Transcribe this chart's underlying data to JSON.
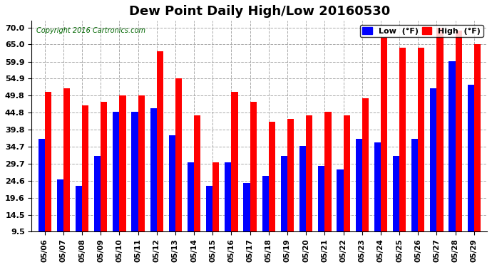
{
  "title": "Dew Point Daily High/Low 20160530",
  "copyright": "Copyright 2016 Cartronics.com",
  "dates": [
    "05/06",
    "05/07",
    "05/08",
    "05/09",
    "05/10",
    "05/11",
    "05/12",
    "05/13",
    "05/14",
    "05/15",
    "05/16",
    "05/17",
    "05/18",
    "05/19",
    "05/20",
    "05/21",
    "05/22",
    "05/23",
    "05/24",
    "05/25",
    "05/26",
    "05/27",
    "05/28",
    "05/29"
  ],
  "low": [
    37,
    25,
    23,
    32,
    45,
    45,
    46,
    38,
    30,
    23,
    30,
    24,
    26,
    32,
    35,
    29,
    28,
    37,
    36,
    32,
    37,
    52,
    60,
    53
  ],
  "high": [
    51,
    52,
    47,
    48,
    50,
    50,
    63,
    55,
    44,
    30,
    51,
    48,
    42,
    43,
    44,
    45,
    44,
    49,
    67,
    64,
    64,
    70,
    69,
    65
  ],
  "low_color": "#0000ff",
  "high_color": "#ff0000",
  "bg_color": "#ffffff",
  "grid_color": "#aaaaaa",
  "yticks": [
    9.5,
    14.5,
    19.6,
    24.6,
    29.7,
    34.7,
    39.8,
    44.8,
    49.8,
    54.9,
    59.9,
    65.0,
    70.0
  ],
  "ylim": [
    9.5,
    72.0
  ],
  "bar_width": 0.35,
  "legend_low_label": "Low  (°F)",
  "legend_high_label": "High  (°F)"
}
